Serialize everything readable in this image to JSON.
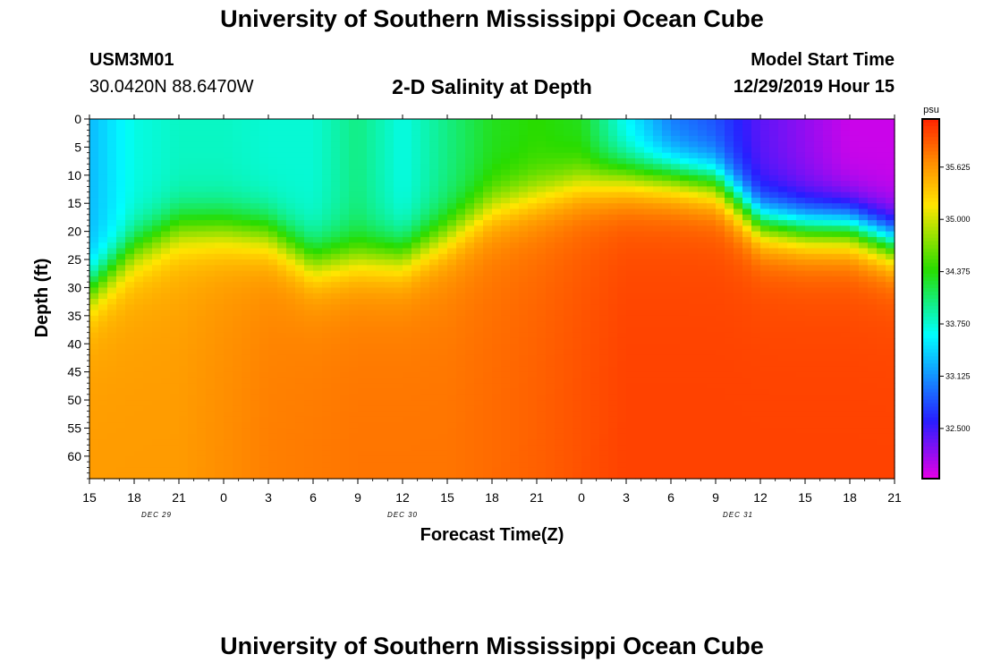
{
  "page": {
    "title_top": "University of Southern Mississippi Ocean Cube",
    "title_bottom": "University of Southern Mississippi Ocean Cube",
    "station_id": "USM3M01",
    "station_coords": "30.0420N 88.6470W",
    "plot_title": "2-D Salinity at Depth",
    "model_start_label": "Model Start Time",
    "model_start_value": "12/29/2019 Hour 15"
  },
  "chart_data": {
    "type": "heatmap",
    "title": "2-D Salinity at Depth",
    "xlabel": "Forecast Time(Z)",
    "ylabel": "Depth (ft)",
    "x_ticks": [
      "15",
      "18",
      "21",
      "0",
      "3",
      "6",
      "9",
      "12",
      "15",
      "18",
      "21",
      "0",
      "3",
      "6",
      "9",
      "12",
      "15",
      "18",
      "21"
    ],
    "x_hours": [
      0,
      3,
      6,
      9,
      12,
      15,
      18,
      21,
      24,
      27,
      30,
      33,
      36,
      39,
      42,
      45,
      48,
      51,
      54
    ],
    "date_labels": [
      {
        "label": "DEC 29",
        "hour": 4.5
      },
      {
        "label": "DEC 30",
        "hour": 21
      },
      {
        "label": "DEC 31",
        "hour": 43.5
      }
    ],
    "y_ticks": [
      0,
      5,
      10,
      15,
      20,
      25,
      30,
      35,
      40,
      45,
      50,
      55,
      60
    ],
    "ylim": [
      0,
      64
    ],
    "xlim": [
      0,
      54
    ],
    "colorbar": {
      "unit": "psu",
      "min": 31.9,
      "max": 36.2,
      "tick_values": [
        35.625,
        35.0,
        34.375,
        33.75,
        33.125,
        32.5
      ],
      "tick_labels": [
        "35.625",
        "35.000",
        "34.375",
        "33.750",
        "33.125",
        "32.500"
      ]
    },
    "surface_salinity_by_hour": [
      [
        0,
        33.3
      ],
      [
        3,
        33.7
      ],
      [
        6,
        33.8
      ],
      [
        9,
        33.8
      ],
      [
        12,
        33.75
      ],
      [
        15,
        33.75
      ],
      [
        18,
        34.0
      ],
      [
        21,
        33.7
      ],
      [
        24,
        34.0
      ],
      [
        27,
        34.3
      ],
      [
        30,
        34.4
      ],
      [
        33,
        34.3
      ],
      [
        36,
        33.6
      ],
      [
        39,
        33.0
      ],
      [
        42,
        32.8
      ],
      [
        45,
        32.4
      ],
      [
        48,
        32.2
      ],
      [
        51,
        32.0
      ],
      [
        54,
        32.0
      ]
    ],
    "deep_salinity_by_hour": [
      [
        0,
        35.6
      ],
      [
        6,
        35.6
      ],
      [
        12,
        35.75
      ],
      [
        18,
        35.8
      ],
      [
        24,
        35.8
      ],
      [
        30,
        35.9
      ],
      [
        36,
        36.05
      ],
      [
        42,
        36.05
      ],
      [
        48,
        36.05
      ],
      [
        54,
        36.05
      ]
    ],
    "halocline_depth_ft_by_hour": [
      [
        0,
        30
      ],
      [
        3,
        23
      ],
      [
        6,
        19
      ],
      [
        9,
        19
      ],
      [
        12,
        20
      ],
      [
        15,
        25
      ],
      [
        18,
        24
      ],
      [
        21,
        24
      ],
      [
        24,
        20
      ],
      [
        27,
        15
      ],
      [
        30,
        13
      ],
      [
        33,
        11
      ],
      [
        36,
        10
      ],
      [
        39,
        10
      ],
      [
        42,
        11
      ],
      [
        45,
        18
      ],
      [
        48,
        19
      ],
      [
        51,
        19
      ],
      [
        54,
        22
      ]
    ]
  }
}
